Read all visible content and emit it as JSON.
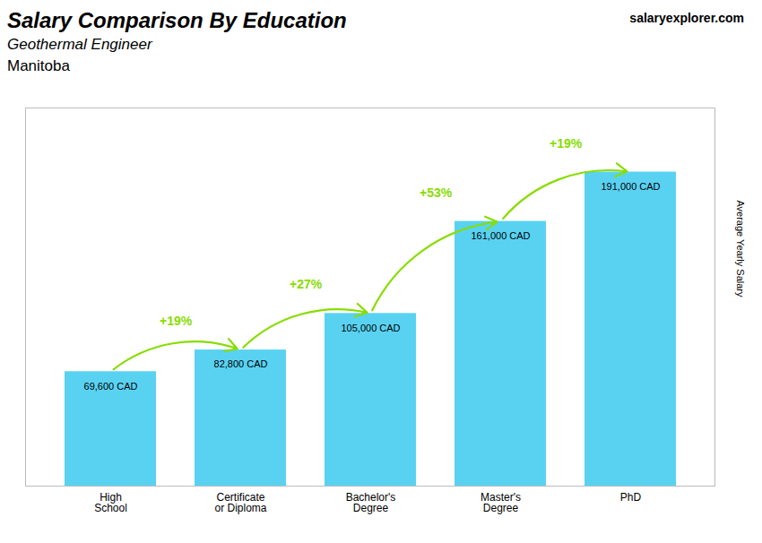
{
  "chart_data": {
    "type": "bar",
    "title": "Salary Comparison By Education",
    "subtitle": "Geothermal Engineer",
    "annotations": [
      "Manitoba",
      "salaryexplorer.com"
    ],
    "ylabel": "Average Yearly Salary",
    "categories": [
      "High\nSchool",
      "Certificate\nor Diploma",
      "Bachelor's\nDegree",
      "Master's\nDegree",
      "PhD"
    ],
    "values": [
      69600,
      82800,
      105000,
      161000,
      191000
    ],
    "value_labels": [
      "69,600 CAD",
      "82,800 CAD",
      "105,000 CAD",
      "161,000 CAD",
      "191,000 CAD"
    ],
    "data_labels": true,
    "color": "#59d2f2",
    "changes": [
      {
        "value": 19,
        "label": "+19%",
        "color": "#88dd00"
      },
      {
        "value": 27,
        "label": "+27%",
        "color": "#88dd00"
      },
      {
        "value": 53,
        "label": "+53%",
        "color": "#88dd00"
      },
      {
        "value": 19,
        "label": "+19%",
        "color": "#88dd00"
      }
    ],
    "ylim": [
      0,
      230000
    ],
    "tick_labels": "x"
  }
}
